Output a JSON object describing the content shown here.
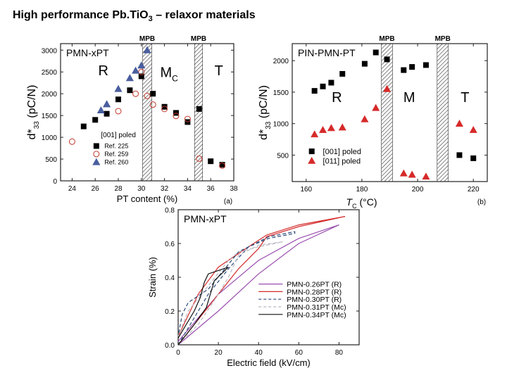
{
  "slide": {
    "title_main": "High performance Pb.TiO",
    "title_sub": "3",
    "title_tail": " – relaxor materials"
  },
  "chart_data": [
    {
      "type": "scatter",
      "panel_label": "(a)",
      "inset_title": "PMN-xPT",
      "xlabel": "PT content (%)",
      "ylabel_main": "d*",
      "ylabel_sub": "33",
      "ylabel_tail": " (pC/N)",
      "xlim": [
        23,
        38
      ],
      "ylim": [
        0,
        3150
      ],
      "xticks": [
        24,
        26,
        28,
        30,
        32,
        34,
        36,
        38
      ],
      "yticks": [
        0,
        500,
        1000,
        1500,
        2000,
        2500,
        3000
      ],
      "mpb_label": "MPB",
      "mpb_bands": [
        [
          30.1,
          30.9
        ],
        [
          34.6,
          35.3
        ]
      ],
      "regions": [
        {
          "label": "R",
          "sub": "",
          "x": 26.7,
          "y": 2420
        },
        {
          "label": "M",
          "sub": "C",
          "x": 32.4,
          "y": 2380
        },
        {
          "label": "T",
          "sub": "",
          "x": 36.7,
          "y": 2420
        }
      ],
      "legend_title": "[001] poled",
      "legend_position": "lower-left",
      "series": [
        {
          "name": "Ref. 225",
          "marker": "square",
          "color": "#000000",
          "fill": "#000000",
          "x": [
            25,
            26,
            27,
            28,
            29,
            30,
            31,
            32,
            33,
            34,
            35,
            36,
            37
          ],
          "y": [
            1250,
            1400,
            1540,
            1870,
            2080,
            2400,
            2000,
            1700,
            1560,
            1350,
            1650,
            450,
            370
          ]
        },
        {
          "name": "Ref. 259",
          "marker": "circle-open",
          "color": "#c0392b",
          "fill": "none",
          "x": [
            24,
            28,
            29.5,
            30,
            30.5,
            31,
            32,
            33,
            34,
            35,
            37
          ],
          "y": [
            900,
            1600,
            2000,
            2500,
            1950,
            1750,
            1650,
            1490,
            1420,
            510,
            350
          ]
        },
        {
          "name": "Ref. 260",
          "marker": "triangle",
          "color": "#3b4f8f",
          "fill": "#4a5fa0",
          "x": [
            26.5,
            27,
            28,
            29,
            29.5,
            30,
            30.5
          ],
          "y": [
            1620,
            1760,
            2110,
            2360,
            2530,
            2650,
            3000
          ]
        }
      ]
    },
    {
      "type": "scatter",
      "panel_label": "(b)",
      "inset_title": "PIN-PMN-PT",
      "xlabel_main": "T",
      "xlabel_sub": "C",
      "xlabel_tail": " (°C)",
      "ylabel_main": "d*",
      "ylabel_sub": "33",
      "ylabel_tail": " (pC/N)",
      "xlim": [
        155,
        225
      ],
      "ylim": [
        80,
        2270
      ],
      "xticks": [
        160,
        180,
        200,
        220
      ],
      "yticks": [
        500,
        1000,
        1500,
        2000
      ],
      "mpb_label": "MPB",
      "mpb_bands": [
        [
          187,
          191
        ],
        [
          207,
          211
        ]
      ],
      "regions": [
        {
          "label": "R",
          "sub": "",
          "x": 171,
          "y": 1340
        },
        {
          "label": "M",
          "sub": "",
          "x": 197,
          "y": 1340
        },
        {
          "label": "T",
          "sub": "",
          "x": 217,
          "y": 1340
        }
      ],
      "legend_position": "lower-left",
      "series": [
        {
          "name": "[001] poled",
          "marker": "square",
          "color": "#000000",
          "fill": "#000000",
          "x": [
            163,
            166,
            169,
            173,
            181,
            185,
            189,
            195,
            198,
            203,
            215,
            220
          ],
          "y": [
            1520,
            1590,
            1650,
            1790,
            1950,
            2130,
            2020,
            1850,
            1900,
            1930,
            500,
            450
          ]
        },
        {
          "name": "[011] poled",
          "marker": "triangle",
          "color": "#d62a2a",
          "fill": "#d62a2a",
          "x": [
            163,
            166,
            169,
            173,
            181,
            185,
            189,
            195,
            198,
            203,
            215,
            220
          ],
          "y": [
            830,
            900,
            930,
            940,
            1070,
            1250,
            1550,
            210,
            190,
            160,
            1000,
            900
          ]
        }
      ]
    },
    {
      "type": "line",
      "inset_title": "PMN-xPT",
      "xlabel": "Electric field (kV/cm)",
      "ylabel": "Strain (%)",
      "xlim": [
        0,
        90
      ],
      "ylim": [
        0,
        0.8
      ],
      "xticks": [
        0,
        20,
        40,
        60,
        80
      ],
      "yticks": [
        0.0,
        0.2,
        0.4,
        0.6,
        0.8
      ],
      "ytick_labels": [
        "0.0",
        "0.2",
        "0.4",
        "0.6",
        "0.8"
      ],
      "legend_position": "lower-right",
      "series": [
        {
          "name": "PMN-0.26PT (R)",
          "color": "#9b4fb0",
          "dash": "solid",
          "x": [
            0,
            20,
            40,
            60,
            80,
            80,
            60,
            40,
            20,
            0
          ],
          "y": [
            0,
            0.2,
            0.42,
            0.6,
            0.71,
            0.71,
            0.63,
            0.5,
            0.3,
            0.02
          ]
        },
        {
          "name": "PMN-0.28PT (R)",
          "color": "#d42a2a",
          "dash": "solid",
          "x": [
            0,
            10,
            20,
            30,
            40,
            44,
            60,
            83,
            83,
            60,
            44,
            35,
            20,
            10,
            0
          ],
          "y": [
            0,
            0.15,
            0.3,
            0.45,
            0.57,
            0.64,
            0.7,
            0.76,
            0.76,
            0.71,
            0.65,
            0.58,
            0.46,
            0.3,
            0.05
          ]
        },
        {
          "name": "PMN-0.30PT (R)",
          "color": "#2c4a7a",
          "dash": "dashed",
          "x": [
            0,
            5,
            15,
            25,
            35,
            45,
            58,
            58,
            45,
            30,
            15,
            5,
            2,
            0
          ],
          "y": [
            0,
            0.1,
            0.3,
            0.45,
            0.58,
            0.63,
            0.66,
            0.67,
            0.64,
            0.55,
            0.33,
            0.25,
            0.18,
            0.05
          ]
        },
        {
          "name": "PMN-0.31PT (Mc)",
          "color": "#b8b8c4",
          "dash": "dashed",
          "x": [
            0,
            10,
            20,
            25,
            30,
            40,
            52,
            52,
            40,
            30,
            25,
            15,
            5,
            0
          ],
          "y": [
            0,
            0.12,
            0.3,
            0.4,
            0.53,
            0.59,
            0.61,
            0.61,
            0.58,
            0.55,
            0.5,
            0.35,
            0.2,
            0.05
          ]
        },
        {
          "name": "PMN-0.34PT (Mc)",
          "color": "#111111",
          "dash": "solid",
          "x": [
            0,
            8,
            14,
            16,
            18,
            25,
            25,
            15,
            13,
            11,
            8,
            0
          ],
          "y": [
            0,
            0.12,
            0.22,
            0.3,
            0.38,
            0.46,
            0.46,
            0.42,
            0.37,
            0.28,
            0.2,
            0.04
          ]
        }
      ]
    }
  ]
}
